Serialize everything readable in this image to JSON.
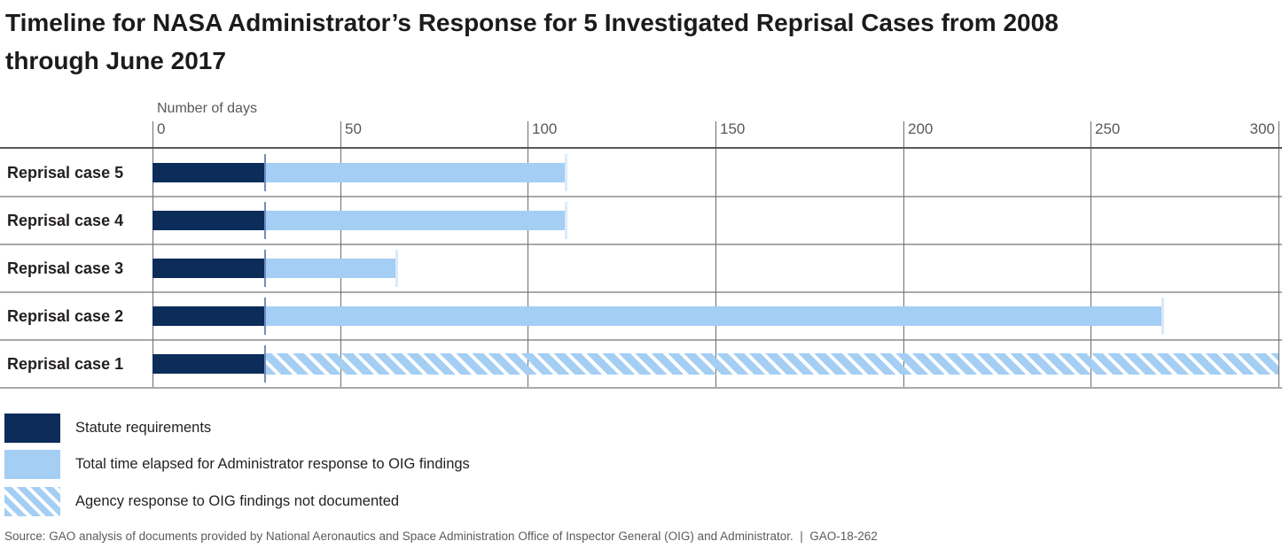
{
  "title_lines": [
    "Timeline for NASA Administrator’s Response for 5 Investigated Reprisal Cases from 2008",
    "through June 2017"
  ],
  "source_note": "Source: GAO analysis of documents provided by National Aeronautics and Space Administration Office of Inspector General (OIG) and Administrator.  |  GAO-18-262",
  "colors": {
    "statute": "#0c2c5a",
    "elapsed": "#a4cef4",
    "marker": "#6e8fbe",
    "end_tick": "#d9eafc",
    "gridline": "#6d6e71",
    "separator": "#a7a9ac",
    "axis_line": "#58595b",
    "axis_text": "#58595b",
    "label_text": "#231f20"
  },
  "legend": [
    {
      "key": "statute",
      "label": "Statute requirements",
      "swatch": "solid-dark"
    },
    {
      "key": "elapsed",
      "label": "Total time elapsed for Administrator response to OIG findings",
      "swatch": "solid-light"
    },
    {
      "key": "undocumented",
      "label": "Agency response to OIG findings not documented",
      "swatch": "hatched"
    }
  ],
  "chart_data": {
    "type": "bar",
    "orientation": "horizontal",
    "title": "Timeline for NASA Administrator’s Response for 5 Investigated Reprisal Cases from 2008 through June 2017",
    "xlabel": "Number of days",
    "xlim": [
      0,
      300
    ],
    "xticks": [
      0,
      50,
      100,
      150,
      200,
      250,
      300
    ],
    "grid": "vertical",
    "legend_position": "bottom-left",
    "categories": [
      "Reprisal case 5",
      "Reprisal case 4",
      "Reprisal case 3",
      "Reprisal case 2",
      "Reprisal case 1"
    ],
    "series": [
      {
        "name": "Statute requirements",
        "style": "solid-dark",
        "values": [
          30,
          30,
          30,
          30,
          30
        ]
      },
      {
        "name": "Total time elapsed for Administrator response to OIG findings",
        "style": "solid-light",
        "values": [
          110,
          110,
          65,
          269,
          null
        ]
      },
      {
        "name": "Agency response to OIG findings not documented",
        "style": "hatched",
        "values": [
          null,
          null,
          null,
          null,
          300
        ]
      }
    ]
  }
}
